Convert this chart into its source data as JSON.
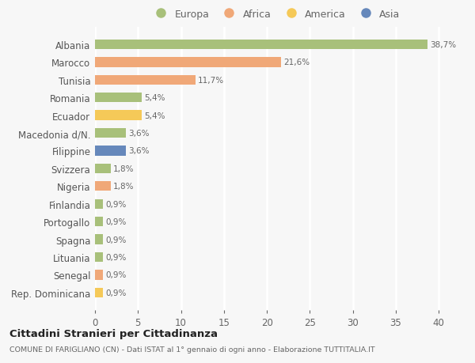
{
  "countries": [
    "Albania",
    "Marocco",
    "Tunisia",
    "Romania",
    "Ecuador",
    "Macedonia d/N.",
    "Filippine",
    "Svizzera",
    "Nigeria",
    "Finlandia",
    "Portogallo",
    "Spagna",
    "Lituania",
    "Senegal",
    "Rep. Dominicana"
  ],
  "values": [
    38.7,
    21.6,
    11.7,
    5.4,
    5.4,
    3.6,
    3.6,
    1.8,
    1.8,
    0.9,
    0.9,
    0.9,
    0.9,
    0.9,
    0.9
  ],
  "labels": [
    "38,7%",
    "21,6%",
    "11,7%",
    "5,4%",
    "5,4%",
    "3,6%",
    "3,6%",
    "1,8%",
    "1,8%",
    "0,9%",
    "0,9%",
    "0,9%",
    "0,9%",
    "0,9%",
    "0,9%"
  ],
  "colors": [
    "#a8c07a",
    "#f0a878",
    "#f0a878",
    "#a8c07a",
    "#f5c958",
    "#a8c07a",
    "#6688bb",
    "#a8c07a",
    "#f0a878",
    "#a8c07a",
    "#a8c07a",
    "#a8c07a",
    "#a8c07a",
    "#f0a878",
    "#f5c958"
  ],
  "legend_labels": [
    "Europa",
    "Africa",
    "America",
    "Asia"
  ],
  "legend_colors": [
    "#a8c07a",
    "#f0a878",
    "#f5c958",
    "#6688bb"
  ],
  "title": "Cittadini Stranieri per Cittadinanza",
  "subtitle": "COMUNE DI FARIGLIANO (CN) - Dati ISTAT al 1° gennaio di ogni anno - Elaborazione TUTTITALIA.IT",
  "xlim": [
    0,
    42
  ],
  "xticks": [
    0,
    5,
    10,
    15,
    20,
    25,
    30,
    35,
    40
  ],
  "bg_color": "#f7f7f7",
  "grid_color": "#ffffff",
  "bar_height": 0.55
}
